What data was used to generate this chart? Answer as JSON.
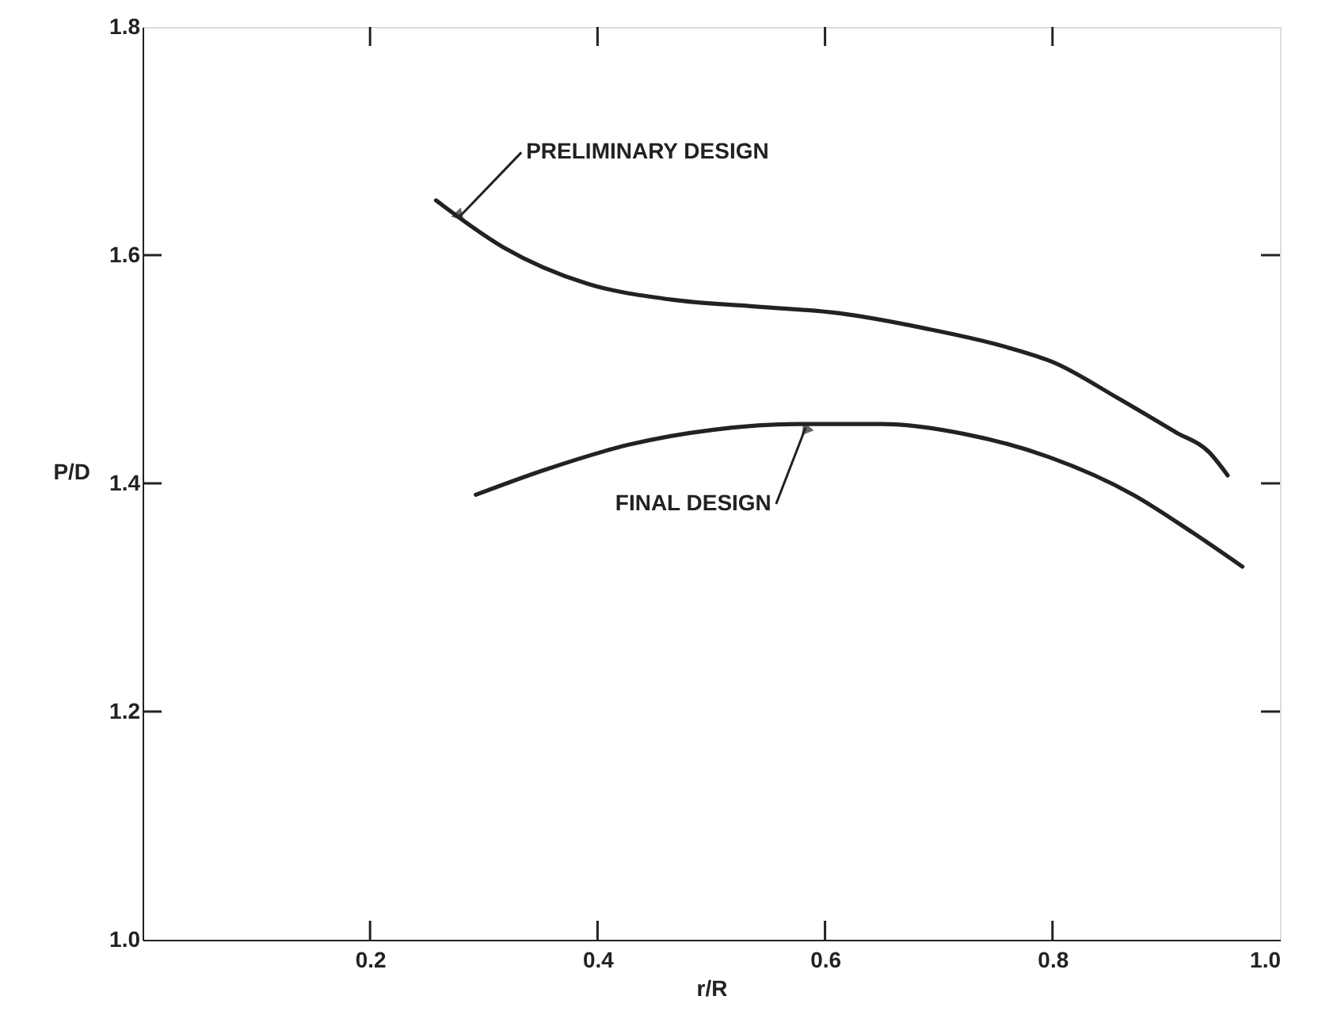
{
  "chart_data": {
    "type": "line",
    "xlabel": "r/R",
    "ylabel": "P/D",
    "xlim": [
      0,
      1.0
    ],
    "ylim": [
      1.0,
      1.8
    ],
    "xticks": [
      0.2,
      0.4,
      0.6,
      0.8,
      {
        "value": 1.0,
        "label": "1.0"
      }
    ],
    "yticks": [
      {
        "value": 1.0,
        "label": "1.0"
      },
      1.2,
      1.4,
      1.6,
      1.8
    ],
    "marker": "none",
    "line_style": "solid",
    "series": [
      {
        "color": "#222222",
        "x": [
          0.258,
          0.317,
          0.391,
          0.465,
          0.539,
          0.613,
          0.687,
          0.761,
          0.801,
          0.857,
          0.908,
          0.938,
          0.954
        ],
        "values": [
          1.648,
          1.607,
          1.575,
          1.561,
          1.555,
          1.549,
          1.536,
          1.519,
          1.506,
          1.475,
          1.445,
          1.427,
          1.407
        ]
      },
      {
        "color": "#222222",
        "x": [
          0.293,
          0.354,
          0.428,
          0.502,
          0.576,
          0.65,
          0.724,
          0.797,
          0.871,
          0.923,
          0.967
        ],
        "values": [
          1.39,
          1.412,
          1.434,
          1.447,
          1.452,
          1.452,
          1.443,
          1.423,
          1.39,
          1.357,
          1.327
        ]
      }
    ],
    "annotations": [
      {
        "text": "PRELIMINARY DESIGN",
        "x": 0.279,
        "y": 1.634
      },
      {
        "text": "FINAL DESIGN",
        "x": 0.583,
        "y": 1.449
      }
    ]
  }
}
